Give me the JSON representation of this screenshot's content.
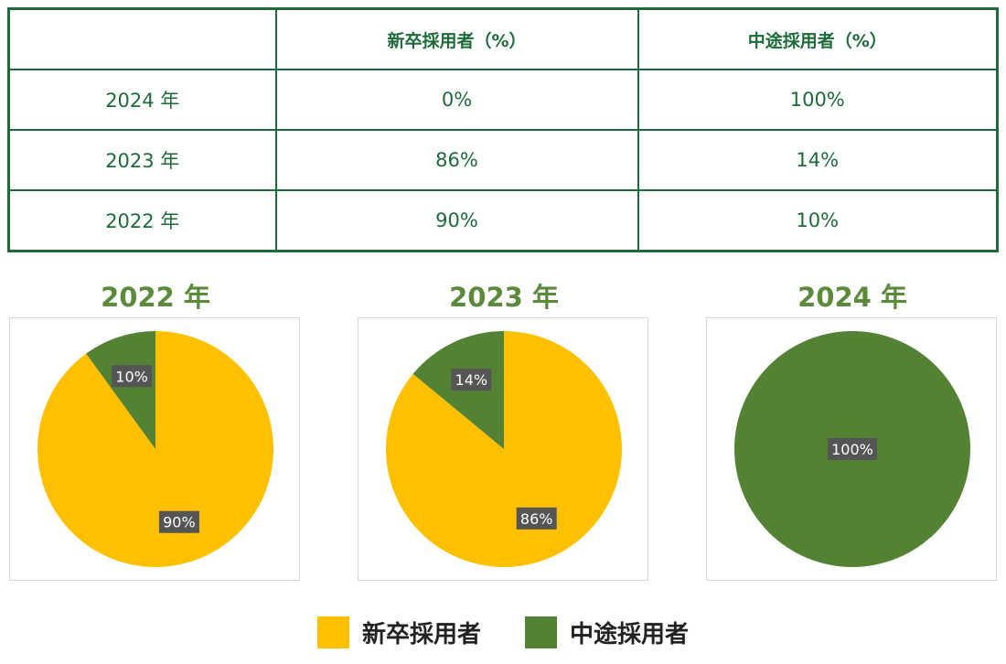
{
  "table": {
    "headers": [
      "",
      "新卒採用者（%）",
      "中途採用者（%）"
    ],
    "rows": [
      [
        "2024 年",
        "0%",
        "100%"
      ],
      [
        "2023 年",
        "86%",
        "14%"
      ],
      [
        "2022 年",
        "90%",
        "10%"
      ]
    ]
  },
  "chart_data": [
    {
      "type": "pie",
      "title": "2022 年",
      "categories": [
        "新卒採用者",
        "中途採用者"
      ],
      "values": [
        90,
        10
      ],
      "labels": [
        "90%",
        "10%"
      ],
      "colors": [
        "#ffc000",
        "#548235"
      ]
    },
    {
      "type": "pie",
      "title": "2023 年",
      "categories": [
        "新卒採用者",
        "中途採用者"
      ],
      "values": [
        86,
        14
      ],
      "labels": [
        "86%",
        "14%"
      ],
      "colors": [
        "#ffc000",
        "#548235"
      ]
    },
    {
      "type": "pie",
      "title": "2024 年",
      "categories": [
        "新卒採用者",
        "中途採用者"
      ],
      "values": [
        0,
        100
      ],
      "labels": [
        "",
        "100%"
      ],
      "colors": [
        "#ffc000",
        "#548235"
      ]
    }
  ],
  "legend": {
    "placement": "bottom",
    "items": [
      {
        "label": "新卒採用者",
        "color": "#ffc000"
      },
      {
        "label": "中途採用者",
        "color": "#548235"
      }
    ]
  }
}
